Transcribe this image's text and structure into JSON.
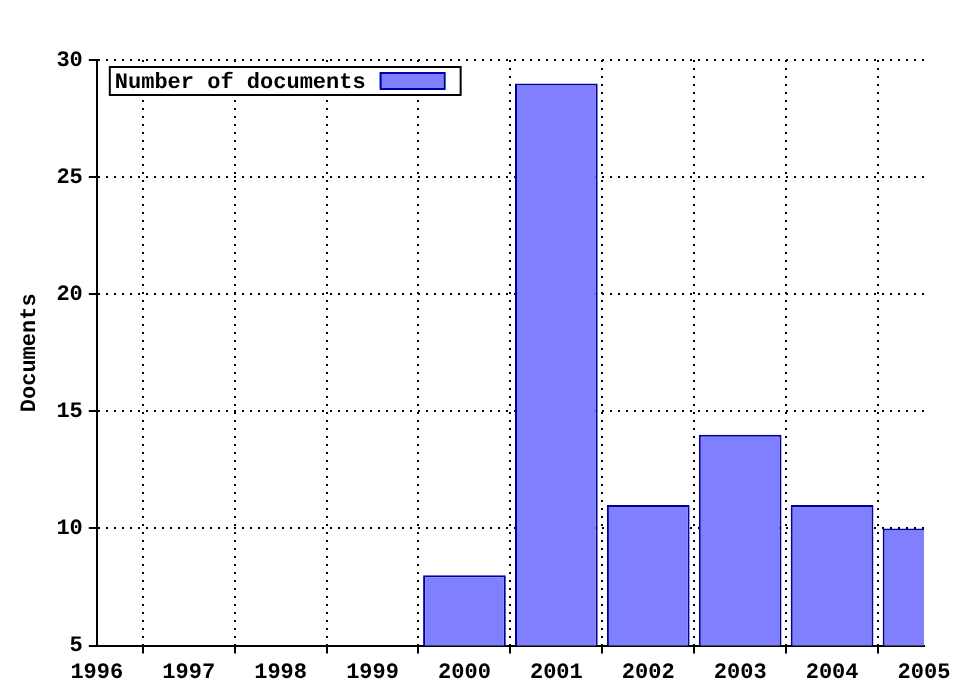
{
  "chart_data": {
    "type": "bar",
    "ylabel": "Documents",
    "x": [
      2000,
      2001,
      2002,
      2003,
      2004,
      2005
    ],
    "series": [
      {
        "name": "Number of documents",
        "color": "#8080ff",
        "values": [
          8,
          29,
          11,
          14,
          11,
          10
        ]
      }
    ],
    "xlim": [
      1996,
      2005
    ],
    "xticks": [
      1996,
      1997,
      1998,
      1999,
      2000,
      2001,
      2002,
      2003,
      2004,
      2005
    ],
    "ylim": [
      5,
      30
    ],
    "yticks": [
      5,
      10,
      15,
      20,
      25,
      30
    ],
    "grid": true,
    "legend": "top left"
  }
}
